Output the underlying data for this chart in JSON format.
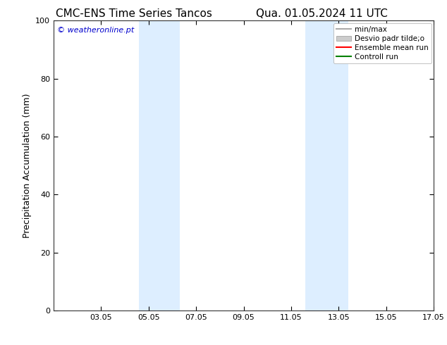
{
  "title_left": "CMC-ENS Time Series Tancos",
  "title_right": "Qua. 01.05.2024 11 UTC",
  "ylabel": "Precipitation Accumulation (mm)",
  "ylim": [
    0,
    100
  ],
  "yticks": [
    0,
    20,
    40,
    60,
    80,
    100
  ],
  "xlim_start": 0,
  "xlim_end": 16,
  "xtick_labels": [
    "03.05",
    "05.05",
    "07.05",
    "09.05",
    "11.05",
    "13.05",
    "15.05",
    "17.05"
  ],
  "xtick_positions": [
    2,
    4,
    6,
    8,
    10,
    12,
    14,
    16
  ],
  "shaded_regions": [
    {
      "x_start": 3.6,
      "x_end": 5.3,
      "color": "#ddeeff"
    },
    {
      "x_start": 10.6,
      "x_end": 12.4,
      "color": "#ddeeff"
    }
  ],
  "legend_entries": [
    {
      "label": "min/max",
      "color": "#aaaaaa",
      "type": "line",
      "lw": 1.5
    },
    {
      "label": "Desvio padr tilde;o",
      "color": "#cccccc",
      "type": "patch"
    },
    {
      "label": "Ensemble mean run",
      "color": "#ff0000",
      "type": "line",
      "lw": 1.5
    },
    {
      "label": "Controll run",
      "color": "#008000",
      "type": "line",
      "lw": 1.5
    }
  ],
  "watermark_text": "© weatheronline.pt",
  "watermark_color": "#0000cc",
  "background_color": "#ffffff",
  "plot_bg_color": "#ffffff",
  "title_fontsize": 11,
  "axis_fontsize": 9,
  "tick_fontsize": 8,
  "legend_fontsize": 7.5,
  "watermark_fontsize": 8
}
